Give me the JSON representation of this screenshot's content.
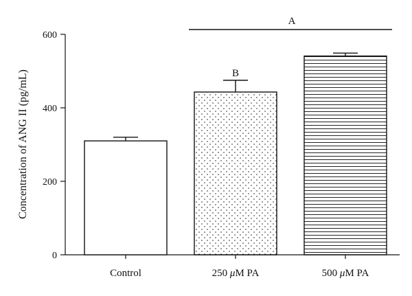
{
  "chart_data": {
    "type": "bar",
    "title": "",
    "xlabel": "",
    "ylabel": "Concentration of ANG II (pg/mL)",
    "ylim": [
      0,
      600
    ],
    "yticks": [
      0,
      200,
      400,
      600
    ],
    "grid": false,
    "categories": [
      {
        "label": "Control",
        "label_parts": [
          {
            "text": "Control",
            "italic": false
          }
        ]
      },
      {
        "label": "250 μM PA",
        "label_parts": [
          {
            "text": "250 ",
            "italic": false
          },
          {
            "text": "μ",
            "italic": true
          },
          {
            "text": "M PA",
            "italic": false
          }
        ]
      },
      {
        "label": "500 μM PA",
        "label_parts": [
          {
            "text": "500 ",
            "italic": false
          },
          {
            "text": "μ",
            "italic": true
          },
          {
            "text": "M PA",
            "italic": false
          }
        ]
      }
    ],
    "values": [
      310,
      443,
      541
    ],
    "errors": [
      10,
      32,
      8
    ],
    "fills": [
      "none",
      "dots",
      "horizontal-lines"
    ],
    "annotations": [
      {
        "label": "A",
        "type": "bracket",
        "from_category": 1,
        "to_category": 2
      },
      {
        "label": "B",
        "type": "bar-label",
        "category": 1
      }
    ]
  }
}
